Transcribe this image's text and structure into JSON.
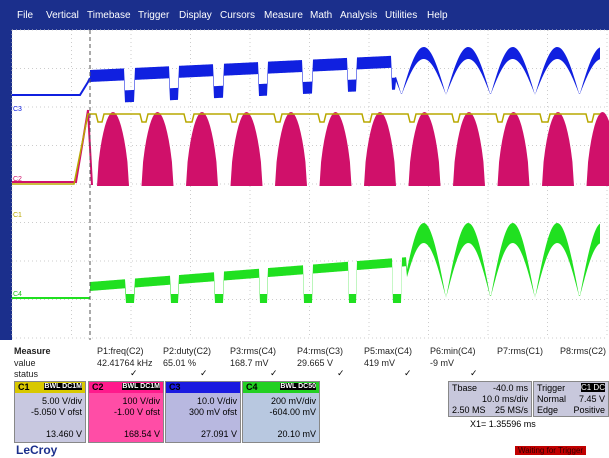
{
  "menu": [
    "File",
    "Vertical",
    "Timebase",
    "Trigger",
    "Display",
    "Cursors",
    "Measure",
    "Math",
    "Analysis",
    "Utilities",
    "Help"
  ],
  "trace_labels": [
    "C1",
    "C2",
    "C3",
    "C4"
  ],
  "measure": {
    "header": [
      "Measure",
      "P1:freq(C2)",
      "P2:duty(C2)",
      "P3:rms(C4)",
      "P4:rms(C3)",
      "P5:max(C4)",
      "P6:min(C4)",
      "P7:rms(C1)",
      "P8:rms(C2)"
    ],
    "value": [
      "value",
      "42.41764 kHz",
      "65.01 %",
      "168.7 mV",
      "29.665 V",
      "419 mV",
      "-9 mV"
    ],
    "status": "status"
  },
  "channels": [
    {
      "label": "C1",
      "coupling": "BWL DC1M",
      "vdiv": "5.00 V/div",
      "offset": "-5.050 V ofst",
      "reading": "13.460 V"
    },
    {
      "label": "C2",
      "coupling": "BWL DC1M",
      "vdiv": "100 V/div",
      "offset": "-1.00 V ofst",
      "reading": "168.54 V"
    },
    {
      "label": "C3",
      "vdiv": "10.0 V/div",
      "offset": "300 mV ofst",
      "reading": "27.091 V"
    },
    {
      "label": "C4",
      "coupling": "BWL DC50",
      "vdiv": "200 mV/div",
      "offset": "-604.00 mV",
      "reading": "20.10 mV"
    }
  ],
  "timebase": {
    "label": "Tbase",
    "delay": "-40.0 ms",
    "tdiv": "10.0 ms/div",
    "samples": "2.50 MS",
    "rate": "25 MS/s"
  },
  "trigger": {
    "label": "Trigger",
    "source": "C1 DC",
    "mode": "Normal",
    "level": "7.45 V",
    "type": "Edge",
    "slope": "Positive"
  },
  "cursor": "X1= 1.35596 ms",
  "brand": "LeCroy",
  "state": "Waiting for Trigger"
}
